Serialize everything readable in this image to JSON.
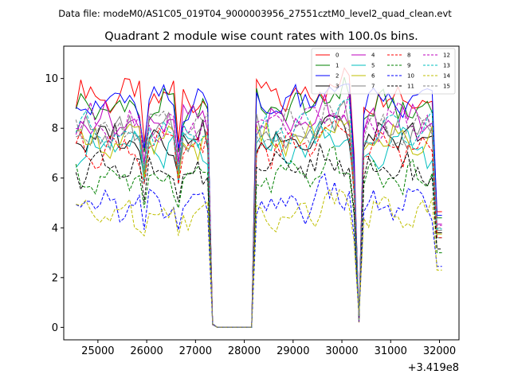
{
  "chart_data": {
    "type": "line",
    "suptitle": "Data file: modeM0/AS1C05_019T04_9000003956_27551cztM0_level2_quad_clean.evt",
    "title": "Quadrant 2 module wise count rates with 100.0s bins.",
    "xlabel": "",
    "ylabel": "",
    "x_offset_label": "+3.419e8",
    "xlim": [
      24300,
      32400
    ],
    "ylim": [
      -0.5,
      11.3
    ],
    "x_ticks": [
      25000,
      26000,
      27000,
      28000,
      29000,
      30000,
      31000,
      32000
    ],
    "x_tick_labels": [
      "25000",
      "26000",
      "27000",
      "28000",
      "29000",
      "30000",
      "31000",
      "32000"
    ],
    "y_ticks": [
      0,
      2,
      4,
      6,
      8,
      10
    ],
    "y_tick_labels": [
      "0",
      "2",
      "4",
      "6",
      "8",
      "10"
    ],
    "grid": false,
    "legend_position": "top-right",
    "segments": [
      {
        "x_start": 24550,
        "x_end": 27350,
        "step": 100
      },
      {
        "x_start": 27350,
        "x_end": 28250,
        "step": 100
      },
      {
        "x_start": 28250,
        "x_end": 32050,
        "step": 100
      }
    ],
    "series": [
      {
        "name": "0",
        "color": "#ff0000",
        "dash": false,
        "level": 9.3
      },
      {
        "name": "1",
        "color": "#008000",
        "dash": false,
        "level": 8.8
      },
      {
        "name": "2",
        "color": "#0000ff",
        "dash": false,
        "level": 9.0
      },
      {
        "name": "3",
        "color": "#000000",
        "dash": false,
        "level": 7.6
      },
      {
        "name": "4",
        "color": "#bf00bf",
        "dash": false,
        "level": 8.3
      },
      {
        "name": "5",
        "color": "#00bfbf",
        "dash": false,
        "level": 7.2
      },
      {
        "name": "6",
        "color": "#bfbf00",
        "dash": false,
        "level": 7.5
      },
      {
        "name": "7",
        "color": "#808080",
        "dash": false,
        "level": 7.8
      },
      {
        "name": "8",
        "color": "#ff0000",
        "dash": true,
        "level": 7.2
      },
      {
        "name": "9",
        "color": "#008000",
        "dash": true,
        "level": 6.0
      },
      {
        "name": "10",
        "color": "#0000ff",
        "dash": true,
        "level": 4.9
      },
      {
        "name": "11",
        "color": "#000000",
        "dash": true,
        "level": 6.3
      },
      {
        "name": "12",
        "color": "#bf00bf",
        "dash": true,
        "level": 8.2
      },
      {
        "name": "13",
        "color": "#00bfbf",
        "dash": true,
        "level": 7.9
      },
      {
        "name": "14",
        "color": "#bfbf00",
        "dash": true,
        "level": 4.6
      },
      {
        "name": "15",
        "color": "#808080",
        "dash": true,
        "level": 8.0
      }
    ]
  }
}
